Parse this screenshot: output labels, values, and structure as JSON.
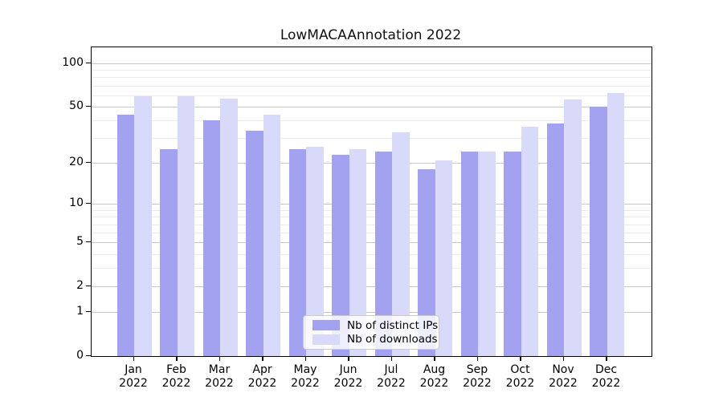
{
  "title": "LowMACAAnnotation 2022",
  "chart_data": {
    "type": "bar",
    "title": "LowMACAAnnotation 2022",
    "categories": [
      "Jan",
      "Feb",
      "Mar",
      "Apr",
      "May",
      "Jun",
      "Jul",
      "Aug",
      "Sep",
      "Oct",
      "Nov",
      "Dec"
    ],
    "year_label": "2022",
    "series": [
      {
        "name": "Nb of distinct IPs",
        "color": "#a2a2f0",
        "values": [
          44,
          25,
          40,
          34,
          25,
          23,
          24,
          18,
          24,
          24,
          38,
          50
        ]
      },
      {
        "name": "Nb of downloads",
        "color": "#d9d9fa",
        "values": [
          59,
          59,
          57,
          44,
          26,
          25,
          33,
          21,
          24,
          36,
          56,
          62
        ]
      }
    ],
    "yscale": "log1p",
    "yticks": [
      0,
      1,
      2,
      5,
      10,
      20,
      50,
      100
    ],
    "minor_gridlines": [
      3,
      4,
      6,
      7,
      8,
      9,
      30,
      40,
      60,
      70,
      80,
      90
    ],
    "ylim": [
      0,
      129
    ],
    "grid": true,
    "legend_position": "lower center",
    "xlabel": "",
    "ylabel": ""
  },
  "colors": {
    "grid_major": "#c9c9c9",
    "grid_minor": "#ececec",
    "spine": "#000000",
    "background": "#ffffff"
  }
}
